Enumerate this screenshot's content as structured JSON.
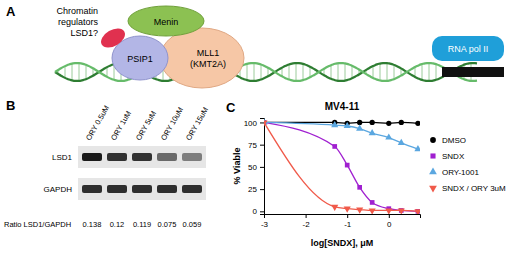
{
  "panel_a": {
    "label": "A",
    "regulator_text": [
      "Chromatin",
      "regulators",
      "LSD1?"
    ],
    "menin": "Menin",
    "psip1": "PSIP1",
    "mll": [
      "MLL1",
      "(KMT2A)"
    ],
    "polymerase": "RNA pol II"
  },
  "panel_b": {
    "label": "B",
    "lanes": [
      "ORY 0.5uM",
      "ORY 1uM",
      "ORY 5uM",
      "ORY 10uM",
      "ORY 15uM"
    ],
    "rows": [
      "LSD1",
      "GAPDH"
    ],
    "ratio_label": "Ratio LSD1/GAPDH",
    "ratios": [
      0.138,
      0.12,
      0.119,
      0.075,
      0.059
    ]
  },
  "panel_c": {
    "label": "C"
  },
  "chart_data": {
    "type": "line",
    "title": "MV4-11",
    "x_label": "log[SNDX], μM",
    "y_label": "% Viable",
    "x": [
      -3,
      -1.3,
      -1,
      -0.7,
      -0.4,
      0,
      0.3,
      0.7
    ],
    "xlim": [
      -3,
      0.75
    ],
    "xticks": [
      -3,
      -2,
      -1,
      0
    ],
    "ylim": [
      -3,
      105
    ],
    "yticks": [
      0,
      25,
      50,
      75,
      100
    ],
    "grid": false,
    "legend": "right",
    "series": [
      {
        "name": "DMSO",
        "color": "#000000",
        "marker": "circle",
        "values": [
          100,
          100,
          99,
          100,
          100,
          99,
          100,
          99
        ]
      },
      {
        "name": "SNDX",
        "color": "#a020d0",
        "marker": "square",
        "values": [
          100,
          73,
          52,
          27,
          10,
          3,
          1,
          0
        ]
      },
      {
        "name": "ORY-1001",
        "color": "#5ba7e0",
        "marker": "triangle",
        "values": [
          100,
          97,
          96,
          93,
          88,
          83,
          77,
          70
        ]
      },
      {
        "name": "SNDX / ORY 3uM",
        "color": "#f05a4a",
        "marker": "triangle-down",
        "values": [
          100,
          5,
          3,
          2,
          1,
          1,
          1,
          0
        ]
      }
    ]
  }
}
